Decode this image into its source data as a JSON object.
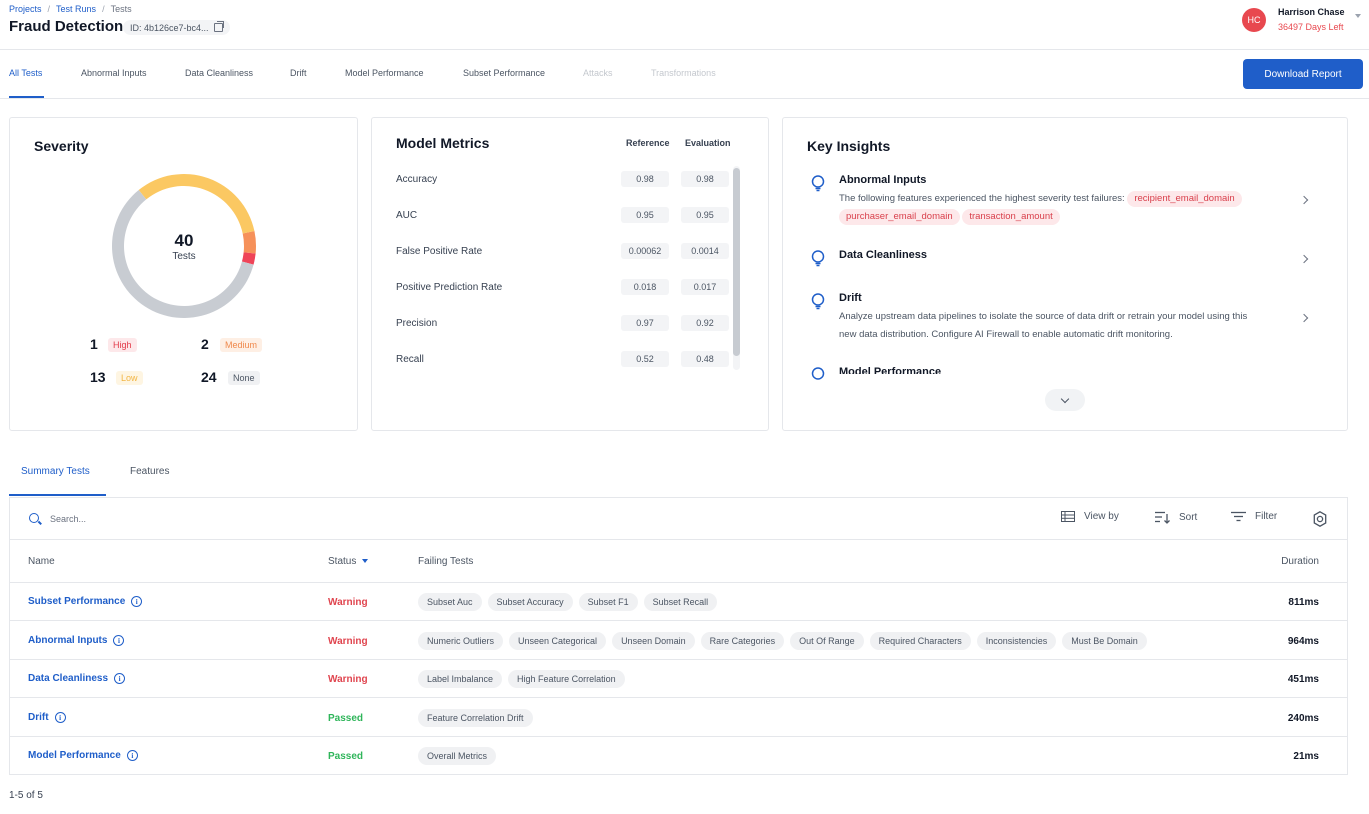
{
  "breadcrumb": [
    "Projects",
    "Test Runs",
    "Tests"
  ],
  "page_title": "Fraud Detection",
  "run_id": "ID: 4b126ce7-bc4...",
  "user": {
    "initials": "HC",
    "name": "Harrison Chase",
    "days_left": "36497 Days Left"
  },
  "top_tabs": [
    "All Tests",
    "Abnormal Inputs",
    "Data Cleanliness",
    "Drift",
    "Model Performance",
    "Subset Performance",
    "Attacks",
    "Transformations"
  ],
  "download_label": "Download Report",
  "severity": {
    "title": "Severity",
    "total": "40",
    "total_label": "Tests",
    "counts": [
      {
        "num": "1",
        "label": "High"
      },
      {
        "num": "2",
        "label": "Medium"
      },
      {
        "num": "13",
        "label": "Low"
      },
      {
        "num": "24",
        "label": "None"
      }
    ],
    "colors": {
      "high": "#ef4458",
      "medium": "#f6915a",
      "low": "#fbc862",
      "none": "#c8ccd2"
    }
  },
  "metrics": {
    "title": "Model Metrics",
    "col_reference": "Reference",
    "col_evaluation": "Evaluation",
    "rows": [
      {
        "label": "Accuracy",
        "ref": "0.98",
        "eval": "0.98"
      },
      {
        "label": "AUC",
        "ref": "0.95",
        "eval": "0.95"
      },
      {
        "label": "False Positive Rate",
        "ref": "0.00062",
        "eval": "0.0014"
      },
      {
        "label": "Positive Prediction Rate",
        "ref": "0.018",
        "eval": "0.017"
      },
      {
        "label": "Precision",
        "ref": "0.97",
        "eval": "0.92"
      },
      {
        "label": "Recall",
        "ref": "0.52",
        "eval": "0.48"
      }
    ]
  },
  "insights": {
    "title": "Key Insights",
    "abnormal_title": "Abnormal Inputs",
    "abnormal_text": "The following features experienced the highest severity test failures:",
    "abnormal_chips": [
      "recipient_email_domain",
      "purchaser_email_domain",
      "transaction_amount"
    ],
    "cleanliness_title": "Data Cleanliness",
    "drift_title": "Drift",
    "drift_text_1": "Analyze upstream data pipelines to isolate the source of data drift or retrain your model using this",
    "drift_text_2": "new data distribution. Configure AI Firewall to enable automatic drift monitoring.",
    "perf_title": "Model Performance"
  },
  "bottom_tabs": [
    "Summary Tests",
    "Features"
  ],
  "toolbar": {
    "search_placeholder": "Search...",
    "view_by": "View by",
    "sort": "Sort",
    "filter": "Filter"
  },
  "table": {
    "headers": {
      "name": "Name",
      "status": "Status",
      "failing": "Failing Tests",
      "duration": "Duration"
    },
    "rows": [
      {
        "name": "Subset Performance",
        "status": "Warning",
        "failing": [
          "Subset Auc",
          "Subset Accuracy",
          "Subset F1",
          "Subset Recall"
        ],
        "duration": "811ms"
      },
      {
        "name": "Abnormal Inputs",
        "status": "Warning",
        "failing": [
          "Numeric Outliers",
          "Unseen Categorical",
          "Unseen Domain",
          "Rare Categories",
          "Out Of Range",
          "Required Characters",
          "Inconsistencies",
          "Must Be Domain"
        ],
        "duration": "964ms"
      },
      {
        "name": "Data Cleanliness",
        "status": "Warning",
        "failing": [
          "Label Imbalance",
          "High Feature Correlation"
        ],
        "duration": "451ms"
      },
      {
        "name": "Drift",
        "status": "Passed",
        "failing": [
          "Feature Correlation Drift"
        ],
        "duration": "240ms"
      },
      {
        "name": "Model Performance",
        "status": "Passed",
        "failing": [
          "Overall Metrics"
        ],
        "duration": "21ms"
      }
    ]
  },
  "pagination": "1-5 of 5",
  "colors": {
    "accent": "#1f5ec9",
    "warning": "#e0454f",
    "passed": "#2fb55a"
  }
}
